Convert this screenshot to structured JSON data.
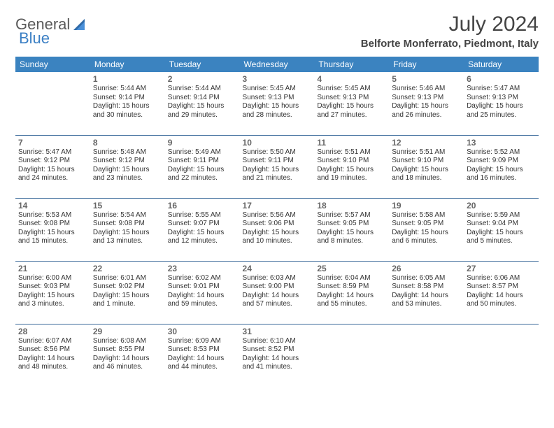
{
  "brand": {
    "part1": "General",
    "part2": "Blue"
  },
  "title": "July 2024",
  "location": "Belforte Monferrato, Piedmont, Italy",
  "colors": {
    "header_bg": "#3b83c0",
    "header_text": "#ffffff",
    "cell_border": "#3b6a9a",
    "daynum_color": "#666666",
    "text_color": "#333333",
    "logo_gray": "#5a5a5a",
    "logo_blue": "#3b7fc4",
    "page_bg": "#ffffff"
  },
  "weekdays": [
    "Sunday",
    "Monday",
    "Tuesday",
    "Wednesday",
    "Thursday",
    "Friday",
    "Saturday"
  ],
  "weeks": [
    [
      null,
      {
        "n": "1",
        "sr": "Sunrise: 5:44 AM",
        "ss": "Sunset: 9:14 PM",
        "d1": "Daylight: 15 hours",
        "d2": "and 30 minutes."
      },
      {
        "n": "2",
        "sr": "Sunrise: 5:44 AM",
        "ss": "Sunset: 9:14 PM",
        "d1": "Daylight: 15 hours",
        "d2": "and 29 minutes."
      },
      {
        "n": "3",
        "sr": "Sunrise: 5:45 AM",
        "ss": "Sunset: 9:13 PM",
        "d1": "Daylight: 15 hours",
        "d2": "and 28 minutes."
      },
      {
        "n": "4",
        "sr": "Sunrise: 5:45 AM",
        "ss": "Sunset: 9:13 PM",
        "d1": "Daylight: 15 hours",
        "d2": "and 27 minutes."
      },
      {
        "n": "5",
        "sr": "Sunrise: 5:46 AM",
        "ss": "Sunset: 9:13 PM",
        "d1": "Daylight: 15 hours",
        "d2": "and 26 minutes."
      },
      {
        "n": "6",
        "sr": "Sunrise: 5:47 AM",
        "ss": "Sunset: 9:13 PM",
        "d1": "Daylight: 15 hours",
        "d2": "and 25 minutes."
      }
    ],
    [
      {
        "n": "7",
        "sr": "Sunrise: 5:47 AM",
        "ss": "Sunset: 9:12 PM",
        "d1": "Daylight: 15 hours",
        "d2": "and 24 minutes."
      },
      {
        "n": "8",
        "sr": "Sunrise: 5:48 AM",
        "ss": "Sunset: 9:12 PM",
        "d1": "Daylight: 15 hours",
        "d2": "and 23 minutes."
      },
      {
        "n": "9",
        "sr": "Sunrise: 5:49 AM",
        "ss": "Sunset: 9:11 PM",
        "d1": "Daylight: 15 hours",
        "d2": "and 22 minutes."
      },
      {
        "n": "10",
        "sr": "Sunrise: 5:50 AM",
        "ss": "Sunset: 9:11 PM",
        "d1": "Daylight: 15 hours",
        "d2": "and 21 minutes."
      },
      {
        "n": "11",
        "sr": "Sunrise: 5:51 AM",
        "ss": "Sunset: 9:10 PM",
        "d1": "Daylight: 15 hours",
        "d2": "and 19 minutes."
      },
      {
        "n": "12",
        "sr": "Sunrise: 5:51 AM",
        "ss": "Sunset: 9:10 PM",
        "d1": "Daylight: 15 hours",
        "d2": "and 18 minutes."
      },
      {
        "n": "13",
        "sr": "Sunrise: 5:52 AM",
        "ss": "Sunset: 9:09 PM",
        "d1": "Daylight: 15 hours",
        "d2": "and 16 minutes."
      }
    ],
    [
      {
        "n": "14",
        "sr": "Sunrise: 5:53 AM",
        "ss": "Sunset: 9:08 PM",
        "d1": "Daylight: 15 hours",
        "d2": "and 15 minutes."
      },
      {
        "n": "15",
        "sr": "Sunrise: 5:54 AM",
        "ss": "Sunset: 9:08 PM",
        "d1": "Daylight: 15 hours",
        "d2": "and 13 minutes."
      },
      {
        "n": "16",
        "sr": "Sunrise: 5:55 AM",
        "ss": "Sunset: 9:07 PM",
        "d1": "Daylight: 15 hours",
        "d2": "and 12 minutes."
      },
      {
        "n": "17",
        "sr": "Sunrise: 5:56 AM",
        "ss": "Sunset: 9:06 PM",
        "d1": "Daylight: 15 hours",
        "d2": "and 10 minutes."
      },
      {
        "n": "18",
        "sr": "Sunrise: 5:57 AM",
        "ss": "Sunset: 9:05 PM",
        "d1": "Daylight: 15 hours",
        "d2": "and 8 minutes."
      },
      {
        "n": "19",
        "sr": "Sunrise: 5:58 AM",
        "ss": "Sunset: 9:05 PM",
        "d1": "Daylight: 15 hours",
        "d2": "and 6 minutes."
      },
      {
        "n": "20",
        "sr": "Sunrise: 5:59 AM",
        "ss": "Sunset: 9:04 PM",
        "d1": "Daylight: 15 hours",
        "d2": "and 5 minutes."
      }
    ],
    [
      {
        "n": "21",
        "sr": "Sunrise: 6:00 AM",
        "ss": "Sunset: 9:03 PM",
        "d1": "Daylight: 15 hours",
        "d2": "and 3 minutes."
      },
      {
        "n": "22",
        "sr": "Sunrise: 6:01 AM",
        "ss": "Sunset: 9:02 PM",
        "d1": "Daylight: 15 hours",
        "d2": "and 1 minute."
      },
      {
        "n": "23",
        "sr": "Sunrise: 6:02 AM",
        "ss": "Sunset: 9:01 PM",
        "d1": "Daylight: 14 hours",
        "d2": "and 59 minutes."
      },
      {
        "n": "24",
        "sr": "Sunrise: 6:03 AM",
        "ss": "Sunset: 9:00 PM",
        "d1": "Daylight: 14 hours",
        "d2": "and 57 minutes."
      },
      {
        "n": "25",
        "sr": "Sunrise: 6:04 AM",
        "ss": "Sunset: 8:59 PM",
        "d1": "Daylight: 14 hours",
        "d2": "and 55 minutes."
      },
      {
        "n": "26",
        "sr": "Sunrise: 6:05 AM",
        "ss": "Sunset: 8:58 PM",
        "d1": "Daylight: 14 hours",
        "d2": "and 53 minutes."
      },
      {
        "n": "27",
        "sr": "Sunrise: 6:06 AM",
        "ss": "Sunset: 8:57 PM",
        "d1": "Daylight: 14 hours",
        "d2": "and 50 minutes."
      }
    ],
    [
      {
        "n": "28",
        "sr": "Sunrise: 6:07 AM",
        "ss": "Sunset: 8:56 PM",
        "d1": "Daylight: 14 hours",
        "d2": "and 48 minutes."
      },
      {
        "n": "29",
        "sr": "Sunrise: 6:08 AM",
        "ss": "Sunset: 8:55 PM",
        "d1": "Daylight: 14 hours",
        "d2": "and 46 minutes."
      },
      {
        "n": "30",
        "sr": "Sunrise: 6:09 AM",
        "ss": "Sunset: 8:53 PM",
        "d1": "Daylight: 14 hours",
        "d2": "and 44 minutes."
      },
      {
        "n": "31",
        "sr": "Sunrise: 6:10 AM",
        "ss": "Sunset: 8:52 PM",
        "d1": "Daylight: 14 hours",
        "d2": "and 41 minutes."
      },
      null,
      null,
      null
    ]
  ]
}
